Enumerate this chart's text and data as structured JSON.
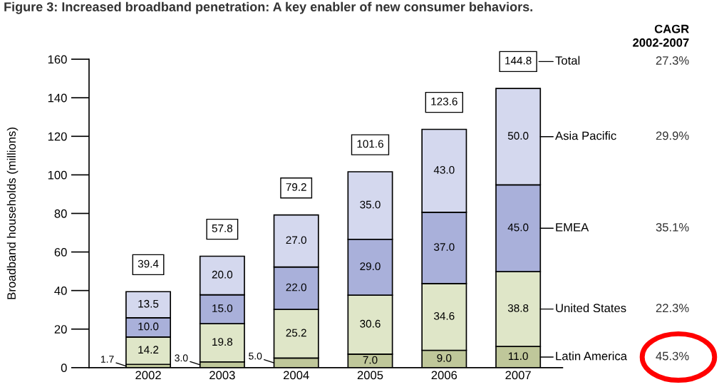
{
  "chart_data": {
    "type": "bar",
    "stacked": true,
    "title": "Figure 3: Increased broadband penetration: A key enabler of new consumer behaviors.",
    "ylabel": "Broadband households (millions)",
    "categories": [
      "2002",
      "2003",
      "2004",
      "2005",
      "2006",
      "2007"
    ],
    "series": [
      {
        "name": "Latin America",
        "color": "#bfc79a",
        "values": [
          1.7,
          3.0,
          5.0,
          7.0,
          9.0,
          11.0
        ],
        "value_labels": [
          "1.7",
          "3.0",
          "5.0",
          "7.0",
          "9.0",
          "11.0"
        ]
      },
      {
        "name": "United States",
        "color": "#dfe6c8",
        "values": [
          14.2,
          19.8,
          25.2,
          30.6,
          34.6,
          38.8
        ],
        "value_labels": [
          "14.2",
          "19.8",
          "25.2",
          "30.6",
          "34.6",
          "38.8"
        ]
      },
      {
        "name": "EMEA",
        "color": "#a9b0da",
        "values": [
          10.0,
          15.0,
          22.0,
          29.0,
          37.0,
          45.0
        ],
        "value_labels": [
          "10.0",
          "15.0",
          "22.0",
          "29.0",
          "37.0",
          "45.0"
        ]
      },
      {
        "name": "Asia Pacific",
        "color": "#d4d8ee",
        "values": [
          13.5,
          20.0,
          27.0,
          35.0,
          43.0,
          50.0
        ],
        "value_labels": [
          "13.5",
          "20.0",
          "27.0",
          "35.0",
          "43.0",
          "50.0"
        ]
      }
    ],
    "totals": [
      "39.4",
      "57.8",
      "79.2",
      "101.6",
      "123.6",
      "144.8"
    ],
    "annotations": [
      "CAGR\n2002-2007",
      "Total",
      "27.3%",
      "29.9%",
      "35.1%",
      "22.3%",
      "45.3%"
    ],
    "ylim": [
      0,
      160
    ],
    "yticks": [
      0,
      20,
      40,
      60,
      80,
      100,
      120,
      140,
      160
    ],
    "grid": false,
    "legend": "right"
  }
}
